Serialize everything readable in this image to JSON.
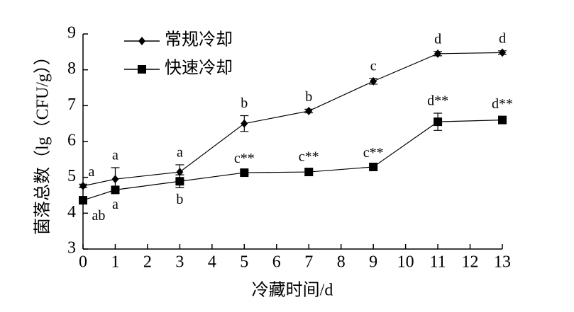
{
  "chart_data": {
    "type": "line",
    "xlabel": "冷藏时间/d",
    "ylabel": "菌落总数（lg（CFU/g））",
    "x": [
      0,
      1,
      3,
      5,
      7,
      9,
      11,
      13
    ],
    "series": [
      {
        "name": "常规冷却",
        "color": "#000000",
        "marker": "diamond",
        "values": [
          4.76,
          4.95,
          5.15,
          6.5,
          6.85,
          7.68,
          8.45,
          8.48
        ],
        "errors": [
          0.05,
          0.32,
          0.2,
          0.22,
          0.05,
          0.08,
          0.06,
          0.05
        ],
        "labels": [
          "a",
          "a",
          "a",
          "b",
          "b",
          "c",
          "d",
          "d"
        ]
      },
      {
        "name": "快速冷却",
        "color": "#000000",
        "marker": "square",
        "values": [
          4.36,
          4.65,
          4.89,
          5.13,
          5.15,
          5.29,
          6.55,
          6.6
        ],
        "errors": [
          0.1,
          0.08,
          0.18,
          0.05,
          0.08,
          0.05,
          0.24,
          0.1
        ],
        "labels": [
          "ab",
          "a",
          "b",
          "c**",
          "c**",
          "c**",
          "d**",
          "d**"
        ]
      }
    ],
    "xlim": [
      0,
      13
    ],
    "xticks": [
      0,
      1,
      2,
      3,
      4,
      5,
      6,
      7,
      8,
      9,
      10,
      11,
      12,
      13
    ],
    "ylim": [
      3,
      9
    ],
    "yticks": [
      3,
      4,
      5,
      6,
      7,
      8,
      9
    ],
    "legend": "top-left",
    "grid": false
  }
}
